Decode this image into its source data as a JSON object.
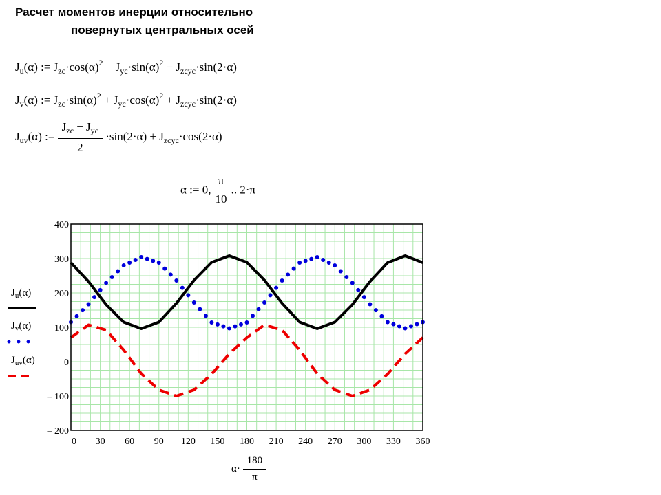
{
  "title": {
    "line1": "Расчет моментов инерции относительно",
    "line2": "повернутых центральных осей"
  },
  "equations": {
    "ju": {
      "lhs_sym": "J",
      "lhs_sub": "u",
      "lhs_arg": "(α)",
      "assign": ":=",
      "t1_sym": "J",
      "t1_sub": "zc",
      "t1_fn": "·cos(α)",
      "t1_pow": "2",
      "op1": "+",
      "t2_sym": "J",
      "t2_sub": "yc",
      "t2_fn": "·sin(α)",
      "t2_pow": "2",
      "op2": "−",
      "t3_sym": "J",
      "t3_sub": "zcyc",
      "t3_fn": "·sin(2·α)"
    },
    "jv": {
      "lhs_sym": "J",
      "lhs_sub": "v",
      "lhs_arg": "(α)",
      "assign": ":=",
      "t1_sym": "J",
      "t1_sub": "zc",
      "t1_fn": "·sin(α)",
      "t1_pow": "2",
      "op1": "+",
      "t2_sym": "J",
      "t2_sub": "yc",
      "t2_fn": "·cos(α)",
      "t2_pow": "2",
      "op2": "+",
      "t3_sym": "J",
      "t3_sub": "zcyc",
      "t3_fn": "·sin(2·α)"
    },
    "juv": {
      "lhs_sym": "J",
      "lhs_sub": "uv",
      "lhs_arg": "(α)",
      "assign": ":=",
      "num_a_sym": "J",
      "num_a_sub": "zc",
      "num_op": "−",
      "num_b_sym": "J",
      "num_b_sub": "yc",
      "den": "2",
      "t1_fn": "·sin(2·α)",
      "op": "+",
      "t2_sym": "J",
      "t2_sub": "zcyc",
      "t2_fn": "·cos(2·α)"
    },
    "range": {
      "var": "α",
      "assign": ":=",
      "start": "0,",
      "step_num": "π",
      "step_den": "10",
      "end": ".. 2·π"
    }
  },
  "legend": [
    {
      "sym": "J",
      "sub": "u",
      "arg": "(α)",
      "color": "#000000",
      "style": "solid"
    },
    {
      "sym": "J",
      "sub": "v",
      "arg": "(α)",
      "color": "#0000dd",
      "style": "dotted"
    },
    {
      "sym": "J",
      "sub": "uv",
      "arg": "(α)",
      "color": "#ee0000",
      "style": "dashed"
    }
  ],
  "chart_data": {
    "type": "line",
    "xlabel_prefix": "α·",
    "xlabel_num": "180",
    "xlabel_den": "π",
    "xlim": [
      0,
      360
    ],
    "ylim": [
      -200,
      400
    ],
    "xticks": [
      0,
      30,
      60,
      90,
      120,
      150,
      180,
      210,
      240,
      270,
      300,
      330,
      360
    ],
    "yticks": [
      400,
      300,
      200,
      100,
      0,
      -100,
      -200
    ],
    "ytick_labels": [
      "400",
      "300",
      "200",
      "100",
      "0",
      "– 100",
      "– 200"
    ],
    "grid": true,
    "x": [
      0,
      18,
      36,
      54,
      72,
      90,
      108,
      126,
      144,
      162,
      180,
      198,
      216,
      234,
      252,
      270,
      288,
      306,
      324,
      342,
      360
    ],
    "series": [
      {
        "color": "#000000",
        "style": "solid",
        "values": [
          288,
          233,
          166,
          115,
          96,
          115,
          170,
          237,
          289,
          308,
          289,
          237,
          170,
          115,
          96,
          115,
          166,
          233,
          288,
          308,
          288
        ]
      },
      {
        "color": "#0000dd",
        "style": "dotted",
        "values": [
          115,
          167,
          229,
          280,
          304,
          288,
          236,
          172,
          114,
          97,
          114,
          172,
          236,
          288,
          304,
          280,
          229,
          167,
          115,
          97,
          115
        ]
      },
      {
        "color": "#ee0000",
        "style": "dashed",
        "values": [
          70,
          107,
          92,
          34,
          -35,
          -82,
          -100,
          -82,
          -36,
          23,
          70,
          107,
          92,
          34,
          -35,
          -82,
          -100,
          -82,
          -36,
          23,
          70
        ]
      }
    ]
  }
}
